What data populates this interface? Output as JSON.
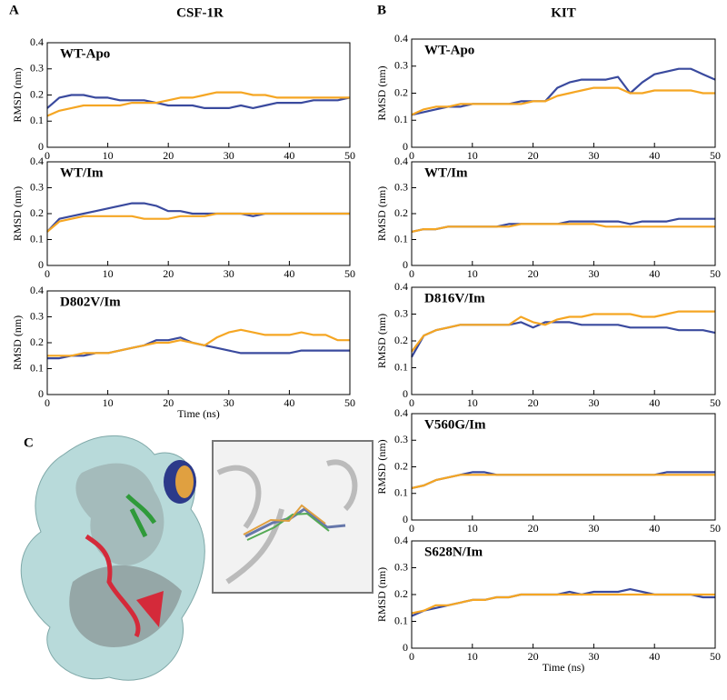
{
  "figure": {
    "panel_labels": [
      "A",
      "B",
      "C"
    ],
    "column_titles": [
      "CSF-1R",
      "KIT"
    ]
  },
  "chart_data": [
    {
      "type": "line",
      "title": "WT-Apo",
      "ylabel": "RMSD (nm)",
      "x": [
        0,
        2,
        4,
        6,
        8,
        10,
        12,
        14,
        16,
        18,
        20,
        22,
        24,
        26,
        28,
        30,
        32,
        34,
        36,
        38,
        40,
        42,
        44,
        46,
        48,
        50
      ],
      "xlim": [
        0,
        50
      ],
      "ylim": [
        0,
        0.4
      ],
      "xticks": [
        0,
        10,
        20,
        30,
        40,
        50
      ],
      "yticks": [
        0,
        0.1,
        0.2,
        0.3,
        0.4
      ],
      "series": [
        {
          "color": "#3a4a9e",
          "values": [
            0.15,
            0.19,
            0.2,
            0.2,
            0.19,
            0.19,
            0.18,
            0.18,
            0.18,
            0.17,
            0.16,
            0.16,
            0.16,
            0.15,
            0.15,
            0.15,
            0.16,
            0.15,
            0.16,
            0.17,
            0.17,
            0.17,
            0.18,
            0.18,
            0.18,
            0.19
          ]
        },
        {
          "color": "#f5a623",
          "values": [
            0.12,
            0.14,
            0.15,
            0.16,
            0.16,
            0.16,
            0.16,
            0.17,
            0.17,
            0.17,
            0.18,
            0.19,
            0.19,
            0.2,
            0.21,
            0.21,
            0.21,
            0.2,
            0.2,
            0.19,
            0.19,
            0.19,
            0.19,
            0.19,
            0.19,
            0.19
          ]
        }
      ]
    },
    {
      "type": "line",
      "title": "WT/Im",
      "ylabel": "RMSD (nm)",
      "x": [
        0,
        2,
        4,
        6,
        8,
        10,
        12,
        14,
        16,
        18,
        20,
        22,
        24,
        26,
        28,
        30,
        32,
        34,
        36,
        38,
        40,
        42,
        44,
        46,
        48,
        50
      ],
      "xlim": [
        0,
        50
      ],
      "ylim": [
        0,
        0.4
      ],
      "xticks": [
        0,
        10,
        20,
        30,
        40,
        50
      ],
      "yticks": [
        0,
        0.1,
        0.2,
        0.3,
        0.4
      ],
      "series": [
        {
          "color": "#3a4a9e",
          "values": [
            0.13,
            0.18,
            0.19,
            0.2,
            0.21,
            0.22,
            0.23,
            0.24,
            0.24,
            0.23,
            0.21,
            0.21,
            0.2,
            0.2,
            0.2,
            0.2,
            0.2,
            0.19,
            0.2,
            0.2,
            0.2,
            0.2,
            0.2,
            0.2,
            0.2,
            0.2
          ]
        },
        {
          "color": "#f5a623",
          "values": [
            0.13,
            0.17,
            0.18,
            0.19,
            0.19,
            0.19,
            0.19,
            0.19,
            0.18,
            0.18,
            0.18,
            0.19,
            0.19,
            0.19,
            0.2,
            0.2,
            0.2,
            0.2,
            0.2,
            0.2,
            0.2,
            0.2,
            0.2,
            0.2,
            0.2,
            0.2
          ]
        }
      ]
    },
    {
      "type": "line",
      "title": "D802V/Im",
      "ylabel": "RMSD (nm)",
      "xlabel": "Time (ns)",
      "x": [
        0,
        2,
        4,
        6,
        8,
        10,
        12,
        14,
        16,
        18,
        20,
        22,
        24,
        26,
        28,
        30,
        32,
        34,
        36,
        38,
        40,
        42,
        44,
        46,
        48,
        50
      ],
      "xlim": [
        0,
        50
      ],
      "ylim": [
        0,
        0.4
      ],
      "xticks": [
        0,
        10,
        20,
        30,
        40,
        50
      ],
      "yticks": [
        0,
        0.1,
        0.2,
        0.3,
        0.4
      ],
      "series": [
        {
          "color": "#3a4a9e",
          "values": [
            0.14,
            0.14,
            0.15,
            0.15,
            0.16,
            0.16,
            0.17,
            0.18,
            0.19,
            0.21,
            0.21,
            0.22,
            0.2,
            0.19,
            0.18,
            0.17,
            0.16,
            0.16,
            0.16,
            0.16,
            0.16,
            0.17,
            0.17,
            0.17,
            0.17,
            0.17
          ]
        },
        {
          "color": "#f5a623",
          "values": [
            0.15,
            0.15,
            0.15,
            0.16,
            0.16,
            0.16,
            0.17,
            0.18,
            0.19,
            0.2,
            0.2,
            0.21,
            0.2,
            0.19,
            0.22,
            0.24,
            0.25,
            0.24,
            0.23,
            0.23,
            0.23,
            0.24,
            0.23,
            0.23,
            0.21,
            0.21
          ]
        }
      ]
    },
    {
      "type": "line",
      "title": "WT-Apo",
      "ylabel": "RMSD (nm)",
      "x": [
        0,
        2,
        4,
        6,
        8,
        10,
        12,
        14,
        16,
        18,
        20,
        22,
        24,
        26,
        28,
        30,
        32,
        34,
        36,
        38,
        40,
        42,
        44,
        46,
        48,
        50
      ],
      "xlim": [
        0,
        50
      ],
      "ylim": [
        0,
        0.4
      ],
      "xticks": [
        0,
        10,
        20,
        30,
        40,
        50
      ],
      "yticks": [
        0,
        0.1,
        0.2,
        0.3,
        0.4
      ],
      "series": [
        {
          "color": "#3a4a9e",
          "values": [
            0.12,
            0.13,
            0.14,
            0.15,
            0.15,
            0.16,
            0.16,
            0.16,
            0.16,
            0.17,
            0.17,
            0.17,
            0.22,
            0.24,
            0.25,
            0.25,
            0.25,
            0.26,
            0.2,
            0.24,
            0.27,
            0.28,
            0.29,
            0.29,
            0.27,
            0.25
          ]
        },
        {
          "color": "#f5a623",
          "values": [
            0.12,
            0.14,
            0.15,
            0.15,
            0.16,
            0.16,
            0.16,
            0.16,
            0.16,
            0.16,
            0.17,
            0.17,
            0.19,
            0.2,
            0.21,
            0.22,
            0.22,
            0.22,
            0.2,
            0.2,
            0.21,
            0.21,
            0.21,
            0.21,
            0.2,
            0.2
          ]
        }
      ]
    },
    {
      "type": "line",
      "title": "WT/Im",
      "ylabel": "RMSD (nm)",
      "x": [
        0,
        2,
        4,
        6,
        8,
        10,
        12,
        14,
        16,
        18,
        20,
        22,
        24,
        26,
        28,
        30,
        32,
        34,
        36,
        38,
        40,
        42,
        44,
        46,
        48,
        50
      ],
      "xlim": [
        0,
        50
      ],
      "ylim": [
        0,
        0.4
      ],
      "xticks": [
        0,
        10,
        20,
        30,
        40,
        50
      ],
      "yticks": [
        0,
        0.1,
        0.2,
        0.3,
        0.4
      ],
      "series": [
        {
          "color": "#3a4a9e",
          "values": [
            0.13,
            0.14,
            0.14,
            0.15,
            0.15,
            0.15,
            0.15,
            0.15,
            0.16,
            0.16,
            0.16,
            0.16,
            0.16,
            0.17,
            0.17,
            0.17,
            0.17,
            0.17,
            0.16,
            0.17,
            0.17,
            0.17,
            0.18,
            0.18,
            0.18,
            0.18
          ]
        },
        {
          "color": "#f5a623",
          "values": [
            0.13,
            0.14,
            0.14,
            0.15,
            0.15,
            0.15,
            0.15,
            0.15,
            0.15,
            0.16,
            0.16,
            0.16,
            0.16,
            0.16,
            0.16,
            0.16,
            0.15,
            0.15,
            0.15,
            0.15,
            0.15,
            0.15,
            0.15,
            0.15,
            0.15,
            0.15
          ]
        }
      ]
    },
    {
      "type": "line",
      "title": "D816V/Im",
      "ylabel": "RMSD (nm)",
      "x": [
        0,
        2,
        4,
        6,
        8,
        10,
        12,
        14,
        16,
        18,
        20,
        22,
        24,
        26,
        28,
        30,
        32,
        34,
        36,
        38,
        40,
        42,
        44,
        46,
        48,
        50
      ],
      "xlim": [
        0,
        50
      ],
      "ylim": [
        0,
        0.4
      ],
      "xticks": [
        0,
        10,
        20,
        30,
        40,
        50
      ],
      "yticks": [
        0,
        0.1,
        0.2,
        0.3,
        0.4
      ],
      "series": [
        {
          "color": "#3a4a9e",
          "values": [
            0.14,
            0.22,
            0.24,
            0.25,
            0.26,
            0.26,
            0.26,
            0.26,
            0.26,
            0.27,
            0.25,
            0.27,
            0.27,
            0.27,
            0.26,
            0.26,
            0.26,
            0.26,
            0.25,
            0.25,
            0.25,
            0.25,
            0.24,
            0.24,
            0.24,
            0.23
          ]
        },
        {
          "color": "#f5a623",
          "values": [
            0.16,
            0.22,
            0.24,
            0.25,
            0.26,
            0.26,
            0.26,
            0.26,
            0.26,
            0.29,
            0.27,
            0.26,
            0.28,
            0.29,
            0.29,
            0.3,
            0.3,
            0.3,
            0.3,
            0.29,
            0.29,
            0.3,
            0.31,
            0.31,
            0.31,
            0.31
          ]
        }
      ]
    },
    {
      "type": "line",
      "title": "V560G/Im",
      "ylabel": "RMSD (nm)",
      "x": [
        0,
        2,
        4,
        6,
        8,
        10,
        12,
        14,
        16,
        18,
        20,
        22,
        24,
        26,
        28,
        30,
        32,
        34,
        36,
        38,
        40,
        42,
        44,
        46,
        48,
        50
      ],
      "xlim": [
        0,
        50
      ],
      "ylim": [
        0,
        0.4
      ],
      "xticks": [
        0,
        10,
        20,
        30,
        40,
        50
      ],
      "yticks": [
        0,
        0.1,
        0.2,
        0.3,
        0.4
      ],
      "series": [
        {
          "color": "#3a4a9e",
          "values": [
            0.12,
            0.13,
            0.15,
            0.16,
            0.17,
            0.18,
            0.18,
            0.17,
            0.17,
            0.17,
            0.17,
            0.17,
            0.17,
            0.17,
            0.17,
            0.17,
            0.17,
            0.17,
            0.17,
            0.17,
            0.17,
            0.18,
            0.18,
            0.18,
            0.18,
            0.18
          ]
        },
        {
          "color": "#f5a623",
          "values": [
            0.12,
            0.13,
            0.15,
            0.16,
            0.17,
            0.17,
            0.17,
            0.17,
            0.17,
            0.17,
            0.17,
            0.17,
            0.17,
            0.17,
            0.17,
            0.17,
            0.17,
            0.17,
            0.17,
            0.17,
            0.17,
            0.17,
            0.17,
            0.17,
            0.17,
            0.17
          ]
        }
      ]
    },
    {
      "type": "line",
      "title": "S628N/Im",
      "ylabel": "RMSD (nm)",
      "xlabel": "Time (ns)",
      "x": [
        0,
        2,
        4,
        6,
        8,
        10,
        12,
        14,
        16,
        18,
        20,
        22,
        24,
        26,
        28,
        30,
        32,
        34,
        36,
        38,
        40,
        42,
        44,
        46,
        48,
        50
      ],
      "xlim": [
        0,
        50
      ],
      "ylim": [
        0,
        0.4
      ],
      "xticks": [
        0,
        10,
        20,
        30,
        40,
        50
      ],
      "yticks": [
        0,
        0.1,
        0.2,
        0.3,
        0.4
      ],
      "series": [
        {
          "color": "#3a4a9e",
          "values": [
            0.12,
            0.14,
            0.15,
            0.16,
            0.17,
            0.18,
            0.18,
            0.19,
            0.19,
            0.2,
            0.2,
            0.2,
            0.2,
            0.21,
            0.2,
            0.21,
            0.21,
            0.21,
            0.22,
            0.21,
            0.2,
            0.2,
            0.2,
            0.2,
            0.19,
            0.19
          ]
        },
        {
          "color": "#f5a623",
          "values": [
            0.13,
            0.14,
            0.16,
            0.16,
            0.17,
            0.18,
            0.18,
            0.19,
            0.19,
            0.2,
            0.2,
            0.2,
            0.2,
            0.2,
            0.2,
            0.2,
            0.2,
            0.2,
            0.2,
            0.2,
            0.2,
            0.2,
            0.2,
            0.2,
            0.2,
            0.2
          ]
        }
      ]
    }
  ]
}
